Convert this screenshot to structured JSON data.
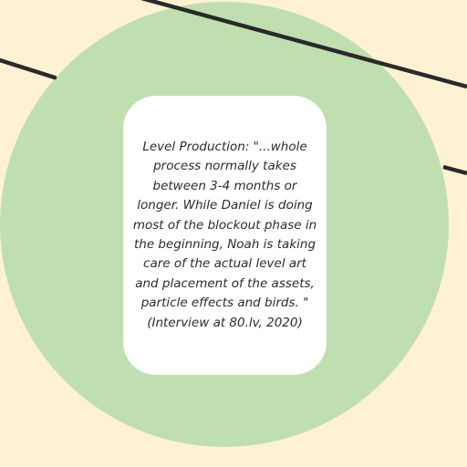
{
  "card": {
    "quote": "Level Production: \"...whole\nprocess normally takes\nbetween 3-4 months or\nlonger. While Daniel is doing\nmost of the blockout phase in\nthe beginning, Noah is  taking\ncare of the actual level art\nand placement of the assets,\nparticle effects and birds. \"\n(Interview at 80.lv, 2020)"
  },
  "colors": {
    "background": "#fef2d2",
    "circle": "#c0dfb0",
    "card": "#ffffff",
    "line": "#2a2a2a",
    "text": "#2b2b2b"
  }
}
